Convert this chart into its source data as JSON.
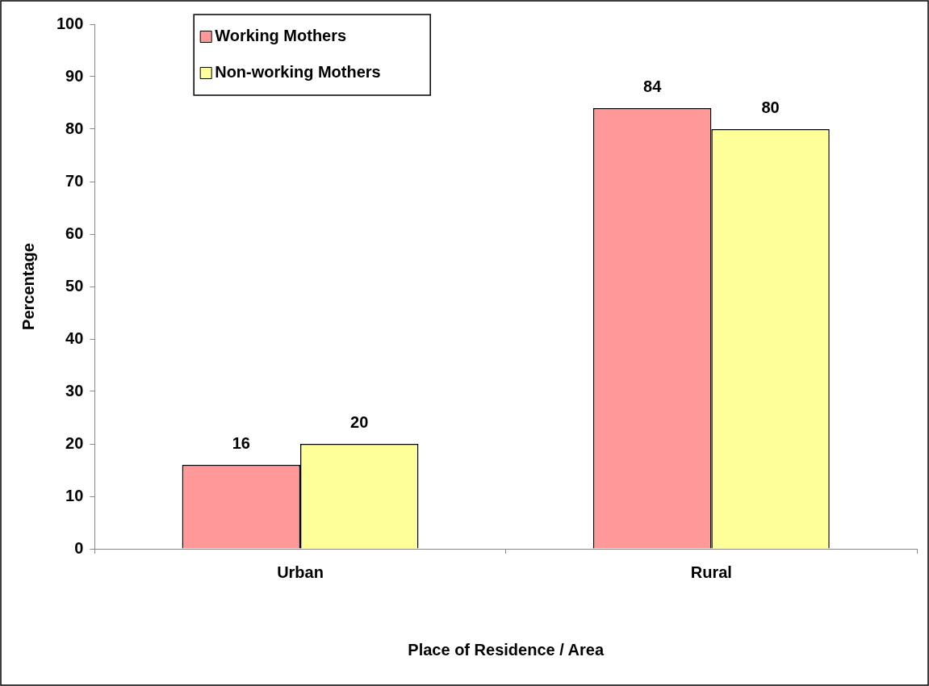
{
  "chart_data": {
    "type": "bar",
    "xlabel": "Place of Residence / Area",
    "ylabel": "Percentage",
    "categories": [
      "Urban",
      "Rural"
    ],
    "series": [
      {
        "name": "Working Mothers",
        "color": "#ff9999",
        "values": [
          16,
          84
        ]
      },
      {
        "name": "Non-working Mothers",
        "color": "#ffff99",
        "values": [
          20,
          80
        ]
      }
    ],
    "ylim": [
      0,
      100
    ],
    "yticks": [
      0,
      10,
      20,
      30,
      40,
      50,
      60,
      70,
      80,
      90,
      100
    ],
    "grid": false,
    "legend": "top",
    "data_labels": true
  }
}
